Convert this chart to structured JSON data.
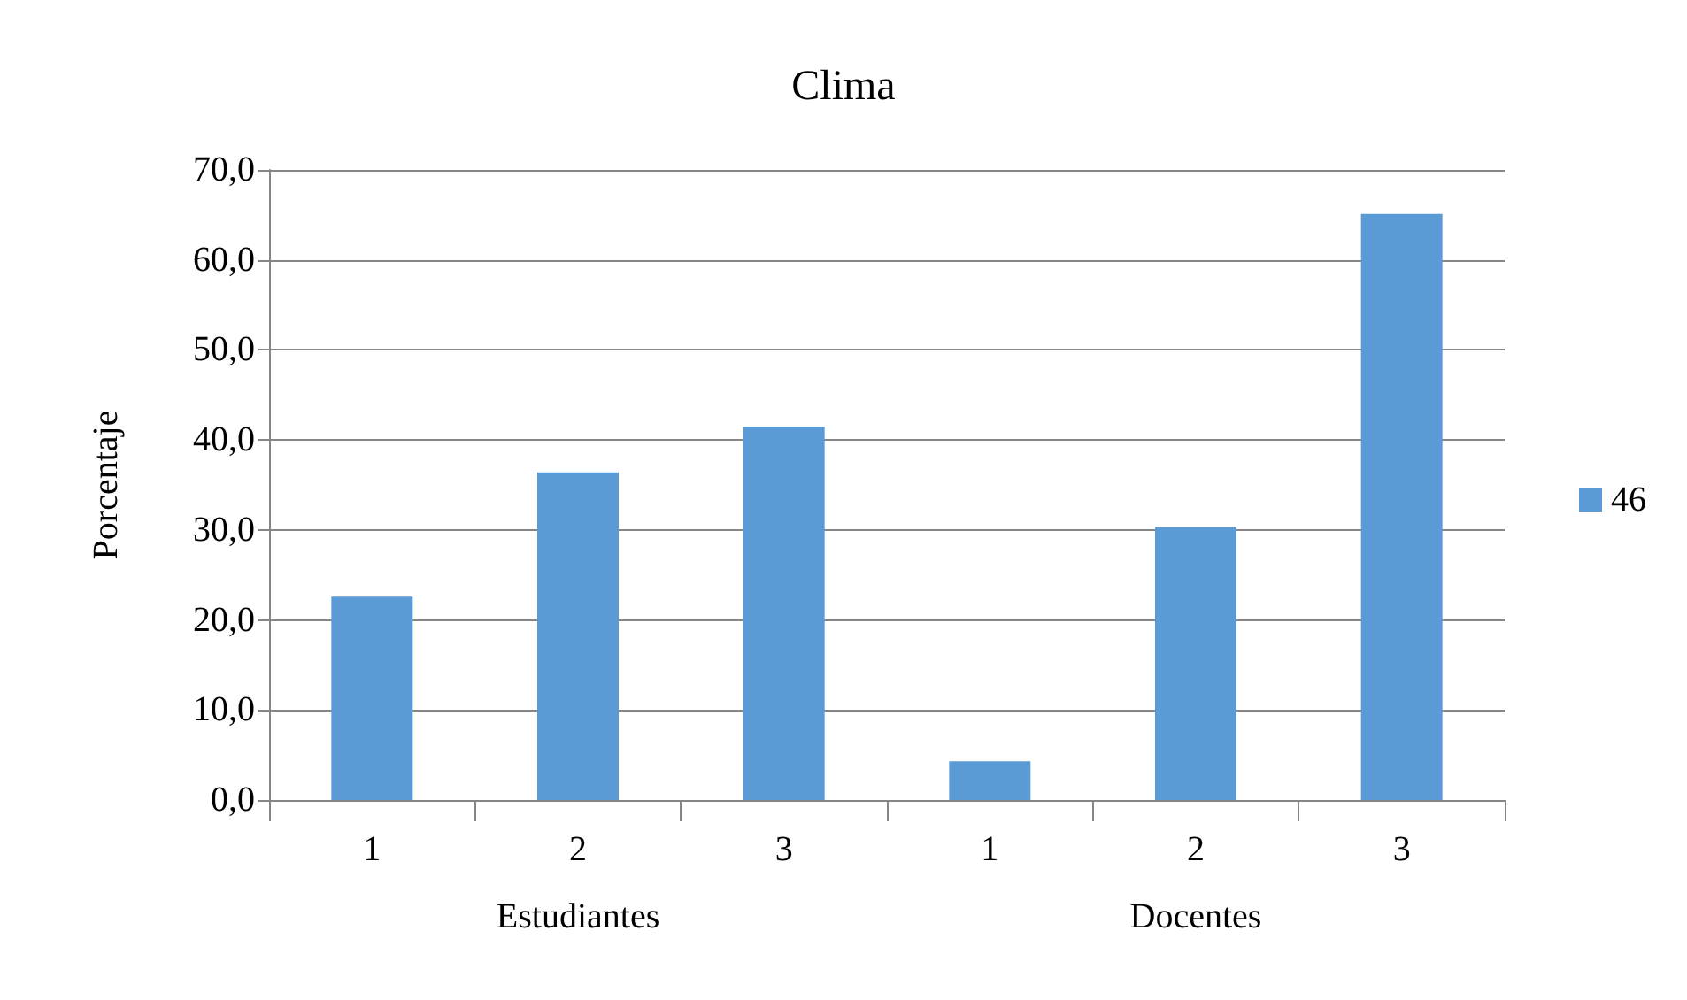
{
  "chart_data": {
    "type": "bar",
    "title": "Clima",
    "ylabel": "Porcentaje",
    "categories": [
      "1",
      "2",
      "3",
      "1",
      "2",
      "3"
    ],
    "series": [
      {
        "name": "46",
        "color": "#5b9bd5",
        "values": [
          22.6,
          36.4,
          41.5,
          4.3,
          30.3,
          65.1
        ]
      }
    ],
    "annotations": [
      "Estudiantes",
      "Docentes"
    ],
    "ylim": [
      0,
      70
    ],
    "yticks": [
      {
        "value": 0,
        "label": "0,0"
      },
      {
        "value": 10,
        "label": "10,0"
      },
      {
        "value": 20,
        "label": "20,0"
      },
      {
        "value": 30,
        "label": "30,0"
      },
      {
        "value": 40,
        "label": "40,0"
      },
      {
        "value": 50,
        "label": "50,0"
      },
      {
        "value": 60,
        "label": "60,0"
      },
      {
        "value": 70,
        "label": "70,0"
      }
    ],
    "grid": "y",
    "legend": "right"
  }
}
